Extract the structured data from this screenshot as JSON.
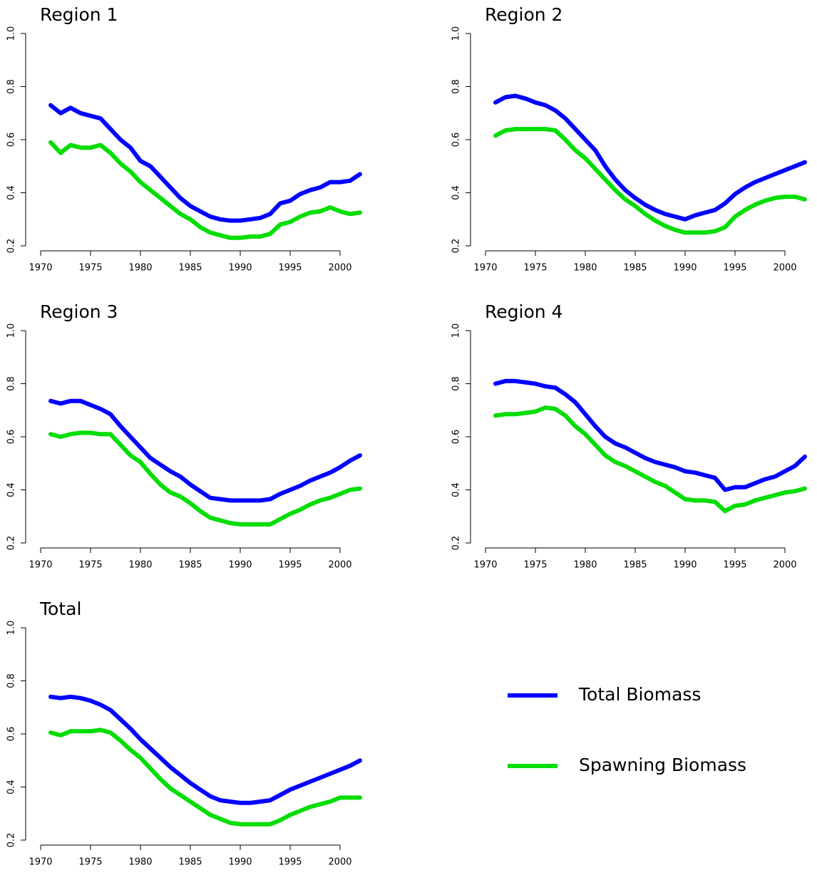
{
  "chart_data": [
    {
      "type": "line",
      "title": "Region 1",
      "x": [
        1971,
        1972,
        1973,
        1974,
        1975,
        1976,
        1977,
        1978,
        1979,
        1980,
        1981,
        1982,
        1983,
        1984,
        1985,
        1986,
        1987,
        1988,
        1989,
        1990,
        1991,
        1992,
        1993,
        1994,
        1995,
        1996,
        1997,
        1998,
        1999,
        2000,
        2001,
        2002
      ],
      "series": [
        {
          "color": "#0000ff",
          "values": [
            0.73,
            0.7,
            0.72,
            0.7,
            0.69,
            0.68,
            0.64,
            0.6,
            0.57,
            0.52,
            0.5,
            0.46,
            0.42,
            0.38,
            0.35,
            0.33,
            0.31,
            0.3,
            0.295,
            0.295,
            0.3,
            0.305,
            0.32,
            0.36,
            0.37,
            0.395,
            0.41,
            0.42,
            0.44,
            0.44,
            0.445,
            0.47
          ]
        },
        {
          "color": "#00dd00",
          "values": [
            0.59,
            0.55,
            0.58,
            0.57,
            0.57,
            0.58,
            0.55,
            0.51,
            0.48,
            0.44,
            0.41,
            0.38,
            0.35,
            0.32,
            0.3,
            0.27,
            0.25,
            0.24,
            0.23,
            0.23,
            0.235,
            0.235,
            0.245,
            0.28,
            0.29,
            0.31,
            0.325,
            0.33,
            0.345,
            0.33,
            0.32,
            0.325
          ]
        }
      ],
      "xlim": [
        1969,
        2003
      ],
      "xticks": [
        1970,
        1975,
        1980,
        1985,
        1990,
        1995,
        2000
      ],
      "ylim": [
        0.2,
        1.0
      ],
      "yticks": [
        0.2,
        0.4,
        0.6,
        0.8,
        {
          "value": 1,
          "label": "1.0"
        }
      ]
    },
    {
      "type": "line",
      "title": "Region 2",
      "x": [
        1971,
        1972,
        1973,
        1974,
        1975,
        1976,
        1977,
        1978,
        1979,
        1980,
        1981,
        1982,
        1983,
        1984,
        1985,
        1986,
        1987,
        1988,
        1989,
        1990,
        1991,
        1992,
        1993,
        1994,
        1995,
        1996,
        1997,
        1998,
        1999,
        2000,
        2001,
        2002
      ],
      "series": [
        {
          "color": "#0000ff",
          "values": [
            0.74,
            0.76,
            0.765,
            0.755,
            0.74,
            0.73,
            0.71,
            0.68,
            0.64,
            0.6,
            0.56,
            0.5,
            0.45,
            0.41,
            0.38,
            0.355,
            0.335,
            0.32,
            0.31,
            0.3,
            0.315,
            0.325,
            0.335,
            0.36,
            0.395,
            0.42,
            0.44,
            0.455,
            0.47,
            0.485,
            0.5,
            0.515
          ]
        },
        {
          "color": "#00dd00",
          "values": [
            0.615,
            0.635,
            0.64,
            0.64,
            0.64,
            0.64,
            0.635,
            0.6,
            0.56,
            0.53,
            0.49,
            0.45,
            0.41,
            0.375,
            0.35,
            0.32,
            0.295,
            0.275,
            0.26,
            0.25,
            0.25,
            0.25,
            0.255,
            0.27,
            0.31,
            0.335,
            0.355,
            0.37,
            0.38,
            0.385,
            0.385,
            0.375
          ]
        }
      ],
      "xlim": [
        1969,
        2003
      ],
      "xticks": [
        1970,
        1975,
        1980,
        1985,
        1990,
        1995,
        2000
      ],
      "ylim": [
        0.2,
        1.0
      ],
      "yticks": [
        0.2,
        0.4,
        0.6,
        0.8,
        {
          "value": 1,
          "label": "1.0"
        }
      ]
    },
    {
      "type": "line",
      "title": "Region 3",
      "x": [
        1971,
        1972,
        1973,
        1974,
        1975,
        1976,
        1977,
        1978,
        1979,
        1980,
        1981,
        1982,
        1983,
        1984,
        1985,
        1986,
        1987,
        1988,
        1989,
        1990,
        1991,
        1992,
        1993,
        1994,
        1995,
        1996,
        1997,
        1998,
        1999,
        2000,
        2001,
        2002
      ],
      "series": [
        {
          "color": "#0000ff",
          "values": [
            0.735,
            0.725,
            0.735,
            0.735,
            0.72,
            0.705,
            0.685,
            0.64,
            0.6,
            0.56,
            0.52,
            0.495,
            0.47,
            0.45,
            0.42,
            0.395,
            0.37,
            0.365,
            0.36,
            0.36,
            0.36,
            0.36,
            0.365,
            0.385,
            0.4,
            0.415,
            0.435,
            0.45,
            0.465,
            0.485,
            0.51,
            0.53
          ]
        },
        {
          "color": "#00dd00",
          "values": [
            0.61,
            0.6,
            0.61,
            0.615,
            0.615,
            0.61,
            0.61,
            0.57,
            0.53,
            0.505,
            0.46,
            0.42,
            0.39,
            0.375,
            0.35,
            0.32,
            0.295,
            0.285,
            0.275,
            0.27,
            0.27,
            0.27,
            0.27,
            0.29,
            0.31,
            0.325,
            0.345,
            0.36,
            0.37,
            0.385,
            0.4,
            0.405
          ]
        }
      ],
      "xlim": [
        1969,
        2003
      ],
      "xticks": [
        1970,
        1975,
        1980,
        1985,
        1990,
        1995,
        2000
      ],
      "ylim": [
        0.2,
        1.0
      ],
      "yticks": [
        0.2,
        0.4,
        0.6,
        0.8,
        {
          "value": 1,
          "label": "1.0"
        }
      ]
    },
    {
      "type": "line",
      "title": "Region 4",
      "x": [
        1971,
        1972,
        1973,
        1974,
        1975,
        1976,
        1977,
        1978,
        1979,
        1980,
        1981,
        1982,
        1983,
        1984,
        1985,
        1986,
        1987,
        1988,
        1989,
        1990,
        1991,
        1992,
        1993,
        1994,
        1995,
        1996,
        1997,
        1998,
        1999,
        2000,
        2001,
        2002
      ],
      "series": [
        {
          "color": "#0000ff",
          "values": [
            0.8,
            0.81,
            0.81,
            0.805,
            0.8,
            0.79,
            0.785,
            0.76,
            0.73,
            0.685,
            0.64,
            0.6,
            0.575,
            0.56,
            0.54,
            0.52,
            0.505,
            0.495,
            0.485,
            0.47,
            0.465,
            0.455,
            0.445,
            0.4,
            0.41,
            0.41,
            0.425,
            0.44,
            0.45,
            0.47,
            0.49,
            0.525
          ]
        },
        {
          "color": "#00dd00",
          "values": [
            0.68,
            0.685,
            0.685,
            0.69,
            0.695,
            0.71,
            0.705,
            0.68,
            0.64,
            0.61,
            0.57,
            0.53,
            0.505,
            0.49,
            0.47,
            0.45,
            0.43,
            0.415,
            0.39,
            0.365,
            0.36,
            0.36,
            0.355,
            0.32,
            0.34,
            0.345,
            0.36,
            0.37,
            0.38,
            0.39,
            0.395,
            0.405
          ]
        }
      ],
      "xlim": [
        1969,
        2003
      ],
      "xticks": [
        1970,
        1975,
        1980,
        1985,
        1990,
        1995,
        2000
      ],
      "ylim": [
        0.2,
        1.0
      ],
      "yticks": [
        0.2,
        0.4,
        0.6,
        0.8,
        {
          "value": 1,
          "label": "1.0"
        }
      ]
    },
    {
      "type": "line",
      "title": "Total",
      "x": [
        1971,
        1972,
        1973,
        1974,
        1975,
        1976,
        1977,
        1978,
        1979,
        1980,
        1981,
        1982,
        1983,
        1984,
        1985,
        1986,
        1987,
        1988,
        1989,
        1990,
        1991,
        1992,
        1993,
        1994,
        1995,
        1996,
        1997,
        1998,
        1999,
        2000,
        2001,
        2002
      ],
      "series": [
        {
          "name": "Total Biomass",
          "color": "#0000ff",
          "values": [
            0.74,
            0.735,
            0.74,
            0.735,
            0.725,
            0.71,
            0.69,
            0.655,
            0.62,
            0.58,
            0.545,
            0.51,
            0.475,
            0.445,
            0.415,
            0.39,
            0.365,
            0.35,
            0.345,
            0.34,
            0.34,
            0.345,
            0.35,
            0.37,
            0.39,
            0.405,
            0.42,
            0.435,
            0.45,
            0.465,
            0.48,
            0.5
          ]
        },
        {
          "name": "Spawning Biomass",
          "color": "#00dd00",
          "values": [
            0.605,
            0.595,
            0.61,
            0.61,
            0.61,
            0.615,
            0.605,
            0.575,
            0.54,
            0.51,
            0.47,
            0.43,
            0.395,
            0.37,
            0.345,
            0.32,
            0.295,
            0.28,
            0.265,
            0.26,
            0.26,
            0.26,
            0.26,
            0.275,
            0.295,
            0.31,
            0.325,
            0.335,
            0.345,
            0.36,
            0.36,
            0.36
          ]
        }
      ],
      "xlim": [
        1969,
        2003
      ],
      "xticks": [
        1970,
        1975,
        1980,
        1985,
        1990,
        1995,
        2000
      ],
      "ylim": [
        0.2,
        1.0
      ],
      "yticks": [
        0.2,
        0.4,
        0.6,
        0.8,
        {
          "value": 1,
          "label": "1.0"
        }
      ]
    }
  ]
}
